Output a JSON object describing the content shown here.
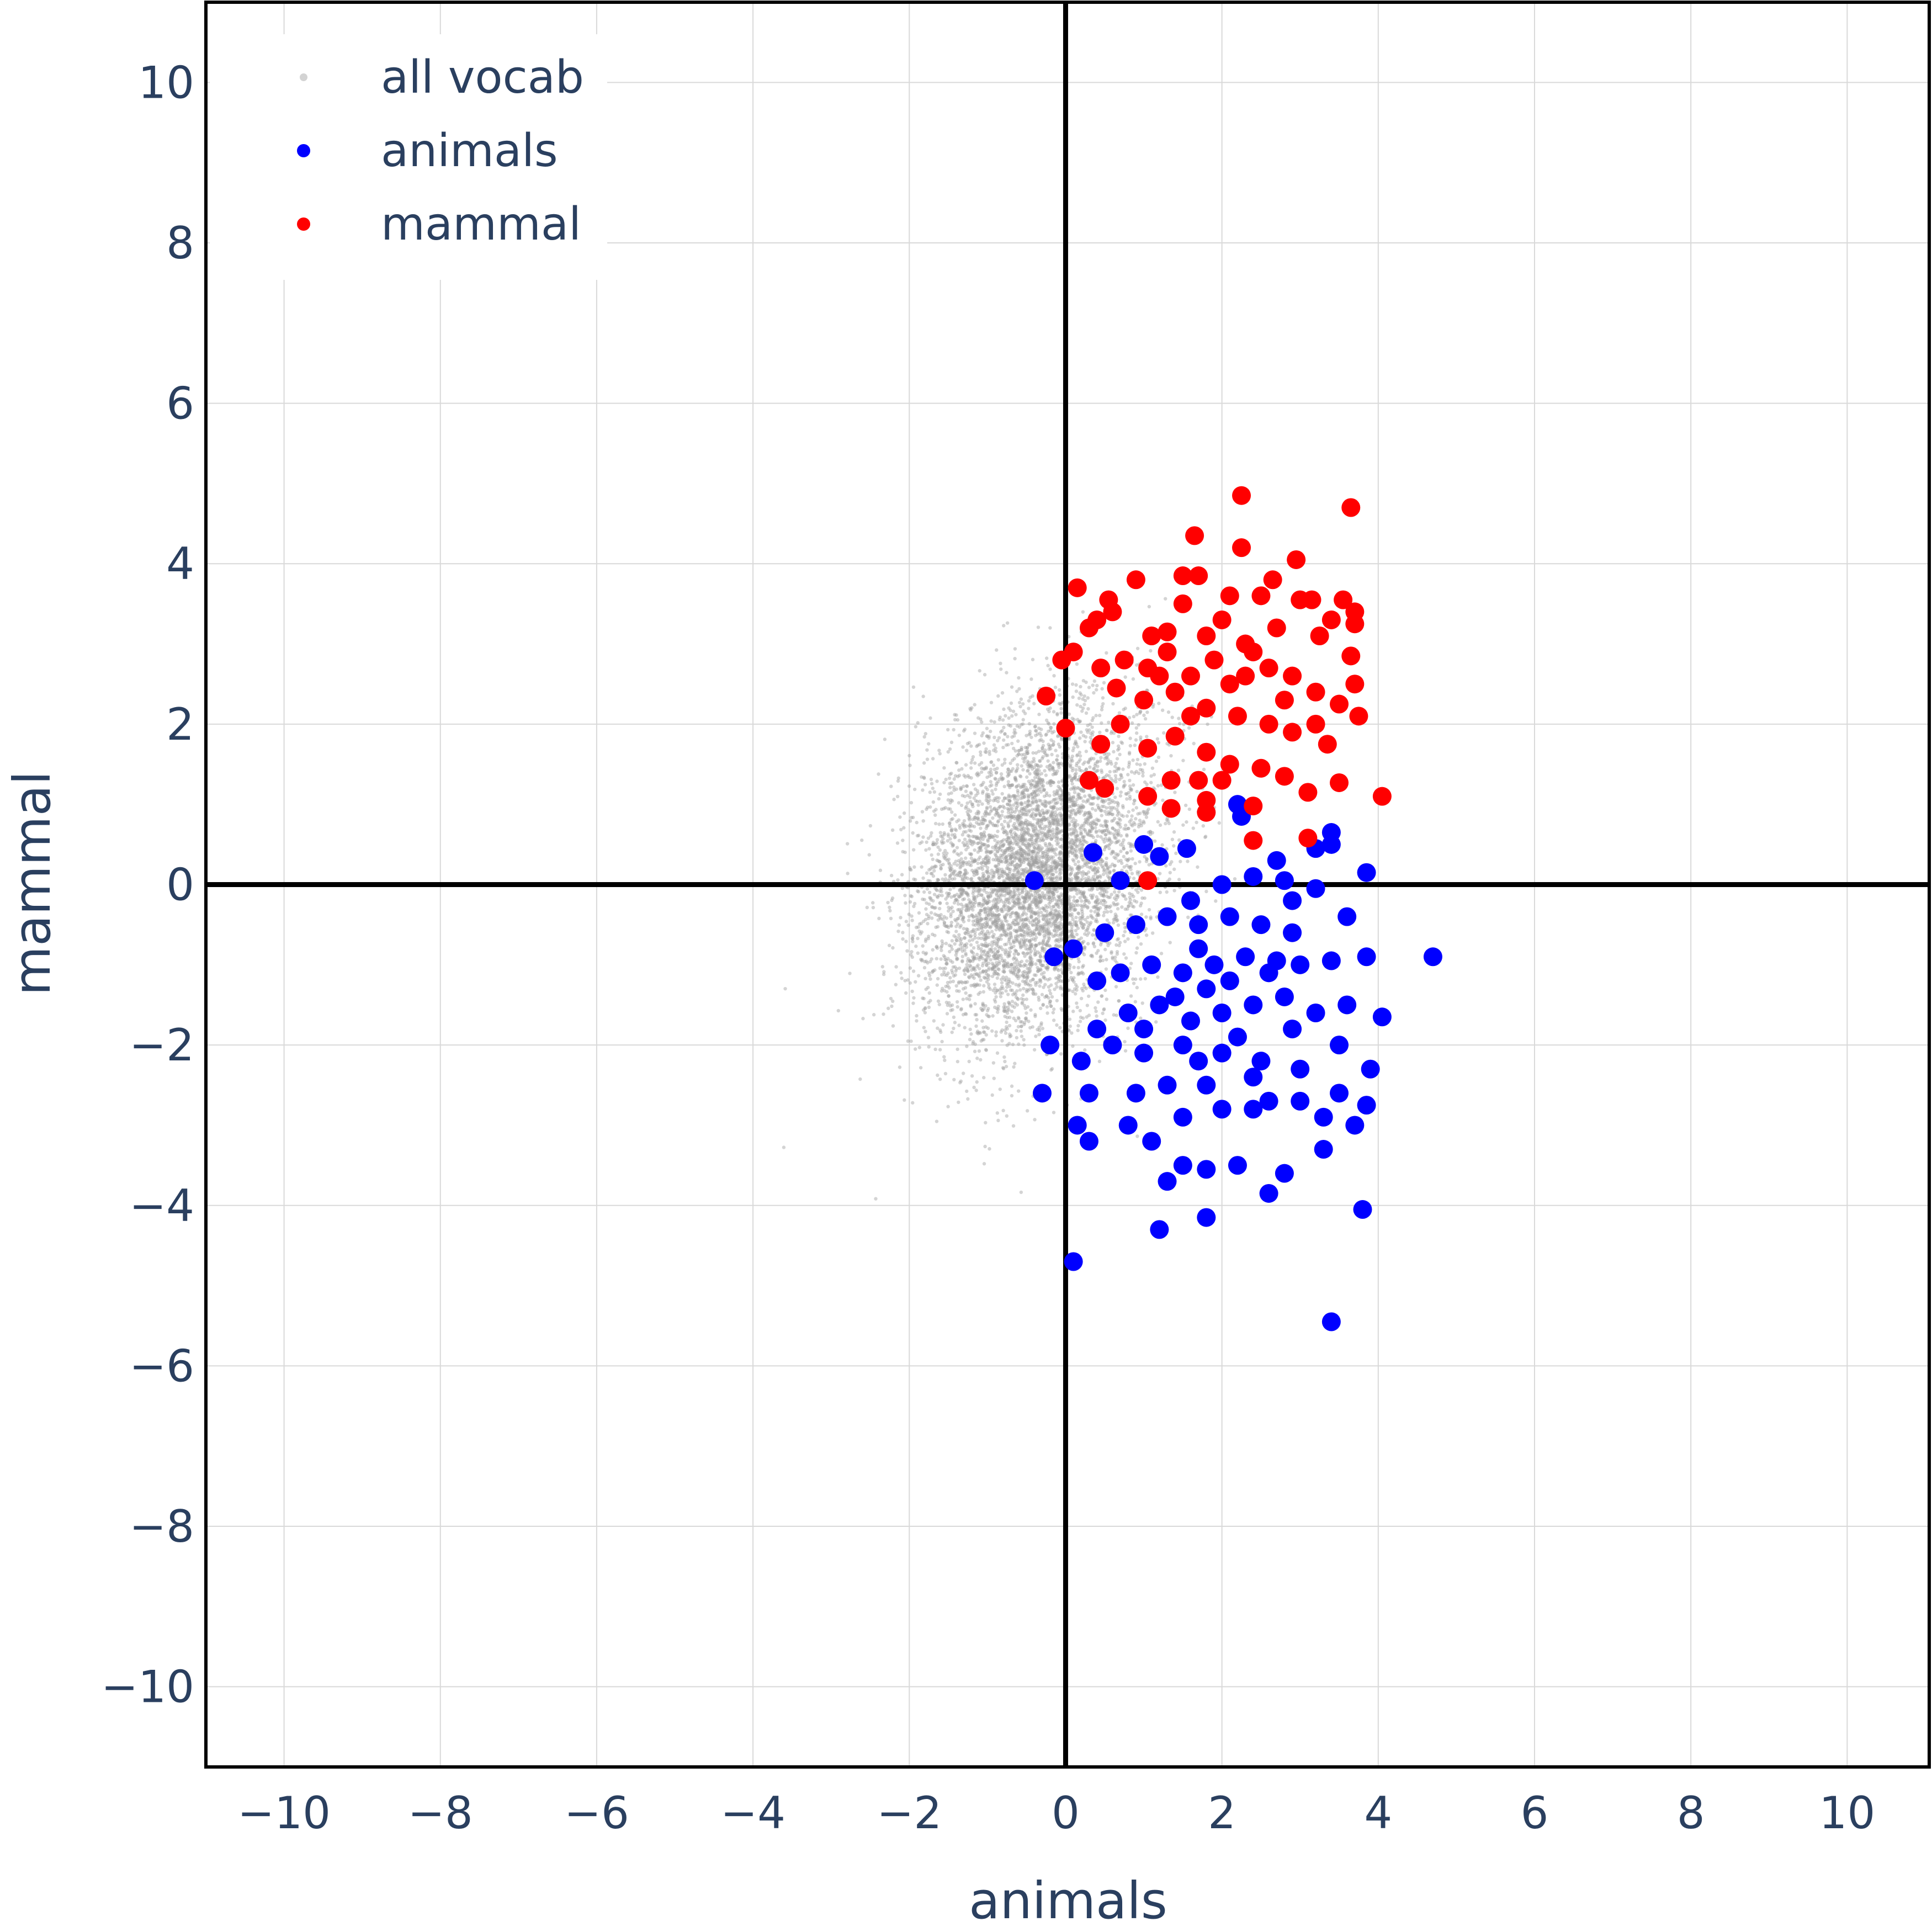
{
  "chart_data": {
    "type": "scatter",
    "title": "",
    "xlabel": "animals",
    "ylabel": "mammal",
    "xlim": [
      -11,
      11.05
    ],
    "ylim": [
      -11,
      11
    ],
    "xticks": [
      -10,
      -8,
      -6,
      -4,
      -2,
      0,
      2,
      4,
      6,
      8,
      10
    ],
    "yticks": [
      -10,
      -8,
      -6,
      -4,
      -2,
      0,
      2,
      4,
      6,
      8,
      10
    ],
    "xtick_labels": [
      "−10",
      "−8",
      "−6",
      "−4",
      "−2",
      "0",
      "2",
      "4",
      "6",
      "8",
      "10"
    ],
    "ytick_labels": [
      "−10",
      "−8",
      "−6",
      "−4",
      "−2",
      "0",
      "2",
      "4",
      "6",
      "8",
      "10"
    ],
    "grid": true,
    "zero_lines": true,
    "legend": {
      "placement": "top-left",
      "entries": [
        "all vocab",
        "animals",
        "mammal"
      ]
    },
    "series": [
      {
        "name": "all vocab",
        "color": "#a0a0a0",
        "distribution": {
          "kind": "gaussian",
          "count": 6000,
          "mean": [
            -0.4,
            0.15
          ],
          "std": [
            0.75,
            1.0
          ],
          "seed": 7
        }
      },
      {
        "name": "animals",
        "color": "#0000ff",
        "points": [
          [
            3.4,
            -5.45
          ],
          [
            0.1,
            -4.7
          ],
          [
            1.2,
            -4.3
          ],
          [
            1.8,
            -4.15
          ],
          [
            2.6,
            -3.85
          ],
          [
            3.8,
            -4.05
          ],
          [
            1.3,
            -3.7
          ],
          [
            1.8,
            -3.55
          ],
          [
            2.2,
            -3.5
          ],
          [
            2.8,
            -3.6
          ],
          [
            1.5,
            -3.5
          ],
          [
            0.3,
            -3.2
          ],
          [
            0.15,
            -3.0
          ],
          [
            0.8,
            -3.0
          ],
          [
            1.1,
            -3.2
          ],
          [
            1.5,
            -2.9
          ],
          [
            2.0,
            -2.8
          ],
          [
            2.4,
            -2.8
          ],
          [
            3.3,
            -3.3
          ],
          [
            3.7,
            -3.0
          ],
          [
            -0.3,
            -2.6
          ],
          [
            0.3,
            -2.6
          ],
          [
            0.9,
            -2.6
          ],
          [
            1.3,
            -2.5
          ],
          [
            1.8,
            -2.5
          ],
          [
            2.6,
            -2.7
          ],
          [
            3.0,
            -2.7
          ],
          [
            3.5,
            -2.6
          ],
          [
            3.85,
            -2.75
          ],
          [
            -0.2,
            -2.0
          ],
          [
            0.2,
            -2.2
          ],
          [
            0.6,
            -2.0
          ],
          [
            1.0,
            -2.1
          ],
          [
            1.5,
            -2.0
          ],
          [
            2.0,
            -2.1
          ],
          [
            2.5,
            -2.2
          ],
          [
            3.0,
            -2.3
          ],
          [
            3.5,
            -2.0
          ],
          [
            3.9,
            -2.3
          ],
          [
            0.4,
            -1.8
          ],
          [
            0.8,
            -1.6
          ],
          [
            1.2,
            -1.5
          ],
          [
            1.6,
            -1.7
          ],
          [
            2.0,
            -1.6
          ],
          [
            2.4,
            -1.5
          ],
          [
            2.8,
            -1.4
          ],
          [
            3.2,
            -1.6
          ],
          [
            3.6,
            -1.5
          ],
          [
            4.05,
            -1.65
          ],
          [
            0.4,
            -1.2
          ],
          [
            0.7,
            -1.1
          ],
          [
            1.1,
            -1.0
          ],
          [
            1.5,
            -1.1
          ],
          [
            1.9,
            -1.0
          ],
          [
            2.3,
            -0.9
          ],
          [
            2.7,
            -0.95
          ],
          [
            3.0,
            -1.0
          ],
          [
            3.4,
            -0.95
          ],
          [
            3.85,
            -0.9
          ],
          [
            4.7,
            -0.9
          ],
          [
            -0.15,
            -0.9
          ],
          [
            0.1,
            -0.8
          ],
          [
            0.5,
            -0.6
          ],
          [
            0.9,
            -0.5
          ],
          [
            1.3,
            -0.4
          ],
          [
            1.7,
            -0.5
          ],
          [
            2.1,
            -0.4
          ],
          [
            2.5,
            -0.5
          ],
          [
            2.9,
            -0.6
          ],
          [
            3.6,
            -0.4
          ],
          [
            -0.4,
            0.05
          ],
          [
            0.7,
            0.05
          ],
          [
            1.0,
            0.5
          ],
          [
            1.55,
            0.45
          ],
          [
            0.35,
            0.4
          ],
          [
            1.2,
            0.35
          ],
          [
            2.0,
            0.0
          ],
          [
            2.4,
            0.1
          ],
          [
            2.7,
            0.3
          ],
          [
            2.8,
            0.05
          ],
          [
            3.2,
            0.45
          ],
          [
            3.4,
            0.5
          ],
          [
            3.4,
            0.65
          ],
          [
            3.85,
            0.15
          ],
          [
            3.2,
            -0.05
          ],
          [
            2.25,
            0.85
          ],
          [
            2.2,
            1.0
          ],
          [
            1.6,
            -0.2
          ],
          [
            2.9,
            -0.2
          ],
          [
            1.8,
            -1.3
          ],
          [
            2.2,
            -1.9
          ],
          [
            1.4,
            -1.4
          ],
          [
            2.6,
            -1.1
          ],
          [
            1.7,
            -0.8
          ],
          [
            2.1,
            -1.2
          ],
          [
            2.9,
            -1.8
          ],
          [
            1.0,
            -1.8
          ],
          [
            2.4,
            -2.4
          ],
          [
            1.7,
            -2.2
          ],
          [
            3.3,
            -2.9
          ]
        ]
      },
      {
        "name": "mammal",
        "color": "#ff0000",
        "points": [
          [
            3.65,
            4.7
          ],
          [
            2.25,
            4.85
          ],
          [
            1.65,
            4.35
          ],
          [
            2.25,
            4.2
          ],
          [
            2.95,
            4.05
          ],
          [
            0.9,
            3.8
          ],
          [
            0.15,
            3.7
          ],
          [
            1.5,
            3.85
          ],
          [
            1.7,
            3.85
          ],
          [
            2.65,
            3.8
          ],
          [
            0.55,
            3.55
          ],
          [
            0.6,
            3.4
          ],
          [
            0.4,
            3.3
          ],
          [
            0.3,
            3.2
          ],
          [
            1.1,
            3.1
          ],
          [
            1.3,
            3.15
          ],
          [
            1.5,
            3.5
          ],
          [
            2.1,
            3.6
          ],
          [
            2.5,
            3.6
          ],
          [
            3.0,
            3.55
          ],
          [
            3.15,
            3.55
          ],
          [
            3.55,
            3.55
          ],
          [
            3.7,
            3.4
          ],
          [
            3.7,
            3.25
          ],
          [
            3.4,
            3.3
          ],
          [
            3.25,
            3.1
          ],
          [
            -0.05,
            2.8
          ],
          [
            0.1,
            2.9
          ],
          [
            0.45,
            2.7
          ],
          [
            0.75,
            2.8
          ],
          [
            1.05,
            2.7
          ],
          [
            1.3,
            2.9
          ],
          [
            1.6,
            2.6
          ],
          [
            1.9,
            2.8
          ],
          [
            2.1,
            2.5
          ],
          [
            2.4,
            2.9
          ],
          [
            2.6,
            2.7
          ],
          [
            2.9,
            2.6
          ],
          [
            3.2,
            2.4
          ],
          [
            3.65,
            2.85
          ],
          [
            3.7,
            2.5
          ],
          [
            3.75,
            2.1
          ],
          [
            3.5,
            2.25
          ],
          [
            -0.25,
            2.35
          ],
          [
            0.65,
            2.45
          ],
          [
            1.0,
            2.3
          ],
          [
            1.4,
            2.4
          ],
          [
            1.8,
            2.2
          ],
          [
            2.2,
            2.1
          ],
          [
            2.6,
            2.0
          ],
          [
            2.9,
            1.9
          ],
          [
            3.2,
            2.0
          ],
          [
            0.0,
            1.95
          ],
          [
            0.45,
            1.75
          ],
          [
            0.7,
            2.0
          ],
          [
            1.05,
            1.7
          ],
          [
            1.4,
            1.85
          ],
          [
            1.8,
            1.65
          ],
          [
            2.1,
            1.5
          ],
          [
            2.5,
            1.45
          ],
          [
            2.8,
            1.35
          ],
          [
            3.35,
            1.75
          ],
          [
            0.3,
            1.3
          ],
          [
            0.5,
            1.2
          ],
          [
            1.05,
            1.1
          ],
          [
            1.35,
            1.3
          ],
          [
            1.35,
            0.95
          ],
          [
            1.8,
            1.05
          ],
          [
            1.8,
            0.9
          ],
          [
            2.4,
            0.98
          ],
          [
            3.5,
            1.27
          ],
          [
            3.1,
            1.15
          ],
          [
            4.05,
            1.1
          ],
          [
            2.4,
            0.55
          ],
          [
            3.1,
            0.58
          ],
          [
            1.05,
            0.05
          ],
          [
            1.7,
            1.3
          ],
          [
            2.0,
            1.3
          ],
          [
            2.0,
            3.3
          ],
          [
            2.3,
            3.0
          ],
          [
            1.8,
            3.1
          ],
          [
            2.7,
            3.2
          ],
          [
            2.8,
            2.3
          ],
          [
            1.6,
            2.1
          ],
          [
            2.3,
            2.6
          ],
          [
            1.2,
            2.6
          ]
        ]
      }
    ]
  }
}
